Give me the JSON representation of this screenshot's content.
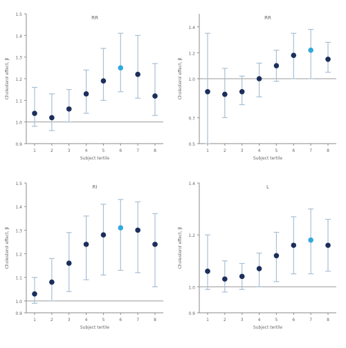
{
  "colors": {
    "point": "#1b2f5a",
    "highlight": "#34a8de",
    "errorbar": "#a9bfd3",
    "axis": "#8a8a8a",
    "refline": "#9a9a9a",
    "text": "#666666"
  },
  "chart_data": [
    {
      "type": "scatter",
      "title": "RR",
      "xlabel": "Subject tertile",
      "ylabel": "Cholesterol effect, β",
      "x": [
        1,
        2,
        3,
        4,
        5,
        6,
        7,
        8
      ],
      "y": [
        1.04,
        1.02,
        1.06,
        1.13,
        1.19,
        1.25,
        1.22,
        1.12
      ],
      "lower": [
        0.98,
        0.96,
        1.0,
        1.04,
        1.1,
        1.14,
        1.11,
        1.03
      ],
      "upper": [
        1.16,
        1.13,
        1.15,
        1.24,
        1.34,
        1.41,
        1.4,
        1.27
      ],
      "highlight_index": 5,
      "ylim": [
        0.9,
        1.5
      ],
      "yticks": [
        0.9,
        1.0,
        1.1,
        1.2,
        1.3,
        1.4,
        1.5
      ],
      "reference_line": 1.0
    },
    {
      "type": "scatter",
      "title": "RR",
      "xlabel": "Subject tertile",
      "ylabel": "Cholesterol effect, β",
      "x": [
        1,
        2,
        3,
        4,
        5,
        6,
        7,
        8
      ],
      "y": [
        0.9,
        0.88,
        0.9,
        1.0,
        1.1,
        1.18,
        1.22,
        1.15
      ],
      "lower": [
        0.5,
        0.7,
        0.8,
        0.86,
        0.98,
        1.0,
        1.0,
        1.05
      ],
      "upper": [
        1.35,
        1.08,
        1.02,
        1.12,
        1.22,
        1.35,
        1.38,
        1.28
      ],
      "highlight_index": 6,
      "ylim": [
        0.5,
        1.5
      ],
      "yticks": [
        0.5,
        0.7,
        1.0,
        1.2,
        1.4
      ],
      "reference_line": 1.0
    },
    {
      "type": "scatter",
      "title": "RI",
      "xlabel": "Subject tertile",
      "ylabel": "Cholesterol effect, β",
      "x": [
        1,
        2,
        3,
        4,
        5,
        6,
        7,
        8
      ],
      "y": [
        1.03,
        1.08,
        1.16,
        1.24,
        1.28,
        1.31,
        1.3,
        1.24
      ],
      "lower": [
        0.99,
        1.0,
        1.04,
        1.09,
        1.11,
        1.13,
        1.12,
        1.06
      ],
      "upper": [
        1.1,
        1.18,
        1.29,
        1.36,
        1.41,
        1.43,
        1.42,
        1.37
      ],
      "highlight_index": 5,
      "ylim": [
        0.95,
        1.5
      ],
      "yticks": [
        0.95,
        1.0,
        1.1,
        1.2,
        1.3,
        1.4,
        1.5
      ],
      "reference_line": 1.0
    },
    {
      "type": "scatter",
      "title": "L",
      "xlabel": "Subject tertile",
      "ylabel": "Cholesterol effect, β",
      "x": [
        1,
        2,
        3,
        4,
        5,
        6,
        7,
        8
      ],
      "y": [
        1.06,
        1.03,
        1.04,
        1.07,
        1.12,
        1.16,
        1.18,
        1.16
      ],
      "lower": [
        0.99,
        0.98,
        0.99,
        1.0,
        1.02,
        1.05,
        1.05,
        1.06
      ],
      "upper": [
        1.2,
        1.1,
        1.09,
        1.13,
        1.21,
        1.27,
        1.3,
        1.26
      ],
      "highlight_index": 6,
      "ylim": [
        0.9,
        1.4
      ],
      "yticks": [
        0.9,
        1.0,
        1.2,
        1.4
      ],
      "reference_line": 1.0
    }
  ]
}
